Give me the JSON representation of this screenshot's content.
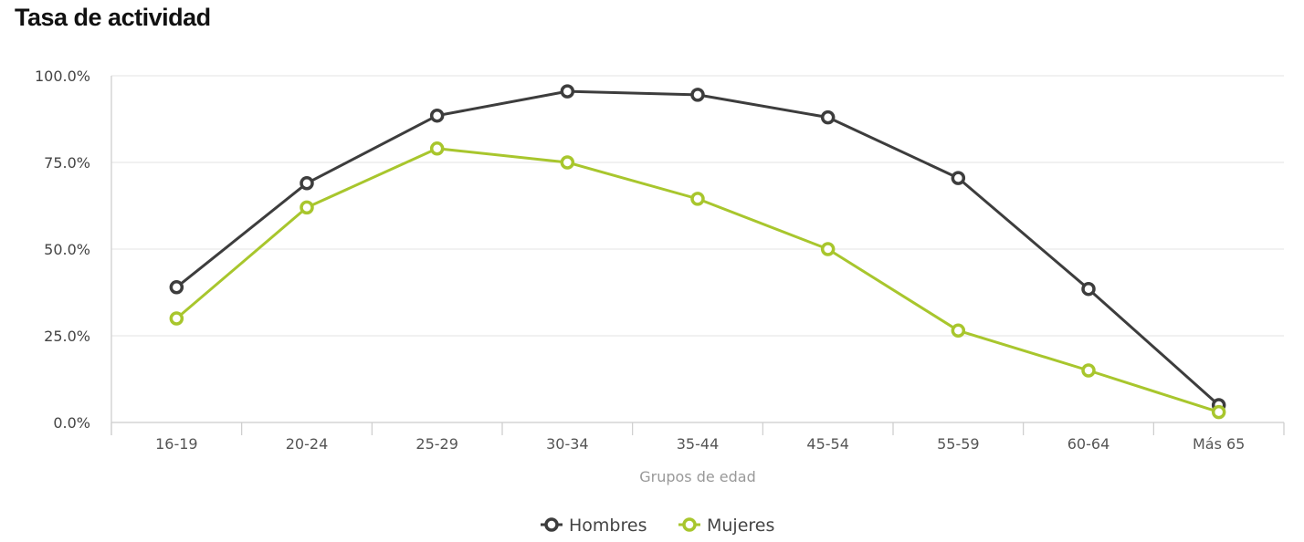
{
  "chart_data": {
    "type": "line",
    "title": "Tasa de actividad",
    "xlabel": "Grupos de edad",
    "ylabel": "",
    "categories": [
      "16-19",
      "20-24",
      "25-29",
      "30-34",
      "35-44",
      "45-54",
      "55-59",
      "60-64",
      "Más 65"
    ],
    "y_ticks": [
      "0.0%",
      "25.0%",
      "50.0%",
      "75.0%",
      "100.0%"
    ],
    "ylim": [
      0,
      100
    ],
    "grid": true,
    "legend_position": "bottom-center",
    "series": [
      {
        "name": "Hombres",
        "color": "#3d3d3d",
        "values": [
          39.0,
          69.0,
          88.5,
          95.5,
          94.5,
          88.0,
          70.5,
          38.5,
          5.0
        ]
      },
      {
        "name": "Mujeres",
        "color": "#a8c62d",
        "values": [
          30.0,
          62.0,
          79.0,
          75.0,
          64.5,
          50.0,
          26.5,
          15.0,
          3.0
        ]
      }
    ]
  }
}
